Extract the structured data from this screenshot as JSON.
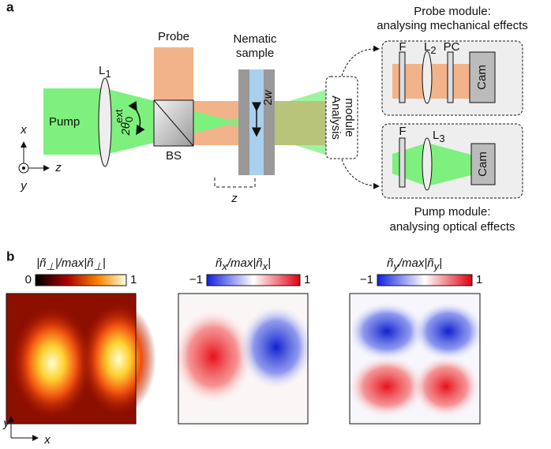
{
  "panel_a": {
    "label": "a",
    "probe_module_title": [
      "Probe module:",
      "analysing mechanical effects"
    ],
    "pump_module_title": [
      "Pump module:",
      "analysing optical effects"
    ],
    "probe": "Probe",
    "sample": [
      "Nematic",
      "sample"
    ],
    "lens1": {
      "main": "L",
      "sub": "1"
    },
    "pump": "Pump",
    "angle": {
      "main": "2θ",
      "sub": "0",
      "sup": "ext"
    },
    "beam_splitter": "BS",
    "width": {
      "num": "2",
      "var": "w"
    },
    "analysis": [
      "Analysis",
      "module"
    ],
    "probe_module": {
      "filter": "F",
      "lens": {
        "main": "L",
        "sub": "2"
      },
      "polarizer": "PC",
      "camera": "Cam"
    },
    "pump_module": {
      "filter": "F",
      "lens": {
        "main": "L",
        "sub": "3"
      },
      "camera": "Cam"
    },
    "axes": {
      "x": "x",
      "z": "z",
      "y": "y"
    },
    "distance": "z"
  },
  "panel_b": {
    "label": "b",
    "maps": [
      {
        "title": [
          "|ñ",
          "⊥",
          "|/max|ñ",
          "⊥",
          "|"
        ],
        "min": "0",
        "max": "1"
      },
      {
        "title": [
          "ñ",
          "x",
          "/max|ñ",
          "x",
          "|"
        ],
        "min": "−1",
        "max": "1"
      },
      {
        "title": [
          "ñ",
          "y",
          "/max|ñ",
          "y",
          "|"
        ],
        "min": "−1",
        "max": "1"
      }
    ],
    "axes": {
      "y": "y",
      "x": "x"
    }
  }
}
